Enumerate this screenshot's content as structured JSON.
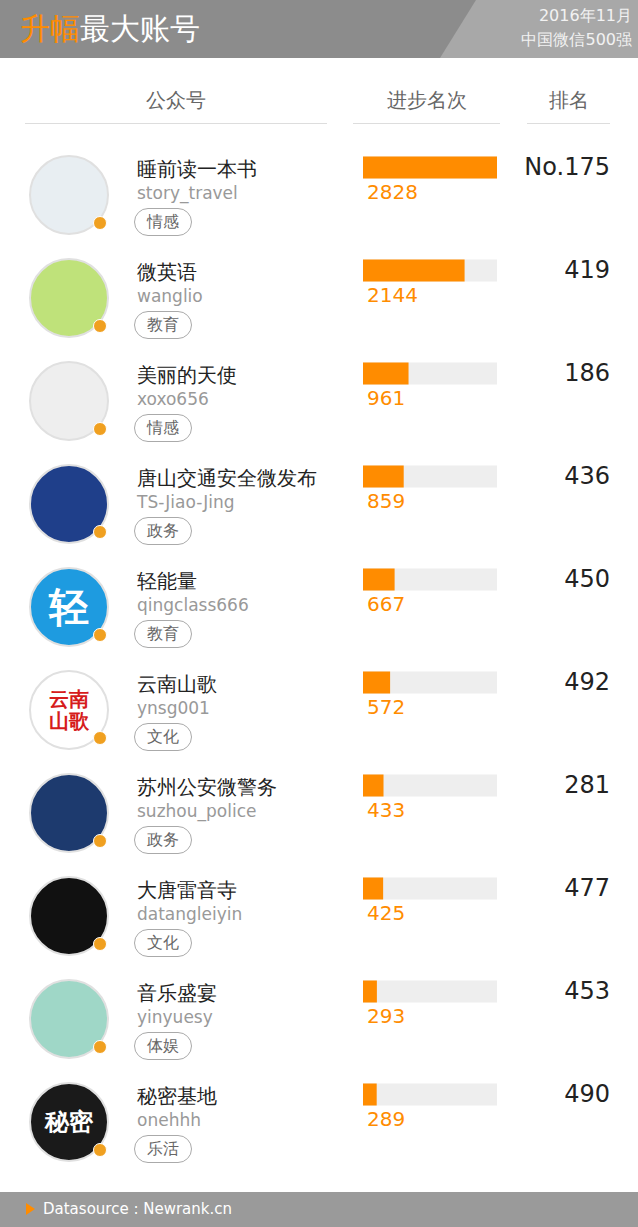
{
  "chart_data": {
    "type": "bar",
    "title": [
      "升幅",
      "最大账号"
    ],
    "subtitle": [
      "2016年11月",
      "中国微信500强"
    ],
    "column_headers": [
      "公众号",
      "进步名次",
      "排名"
    ],
    "categories": [
      "睡前读一本书",
      "微英语",
      "美丽的天使",
      "唐山交通安全微发布",
      "轻能量",
      "云南山歌",
      "苏州公安微警务",
      "大唐雷音寺",
      "音乐盛宴",
      "秘密基地"
    ],
    "ids": [
      "story_travel",
      "wanglio",
      "xoxo656",
      "TS-Jiao-Jing",
      "qingclass666",
      "ynsg001",
      "suzhou_police",
      "datangleiyin",
      "yinyuesy",
      "onehhh"
    ],
    "tags": [
      "情感",
      "教育",
      "情感",
      "政务",
      "教育",
      "文化",
      "政务",
      "文化",
      "体娱",
      "乐活"
    ],
    "avatar_texts": [
      null,
      null,
      null,
      null,
      "轻",
      "云南山歌",
      null,
      null,
      null,
      "秘密"
    ],
    "values": [
      2828,
      2144,
      961,
      859,
      667,
      572,
      433,
      425,
      293,
      289
    ],
    "ranks": [
      {
        "value": 175,
        "label": "No.175"
      },
      419,
      186,
      436,
      450,
      492,
      281,
      477,
      453,
      490
    ],
    "xlim": [
      0,
      2828
    ],
    "color": "#ff8c00",
    "orientation": "horizontal",
    "data_labels": true,
    "tick_labels": false,
    "grid": false,
    "source": "Datasource : Newrank.cn"
  }
}
